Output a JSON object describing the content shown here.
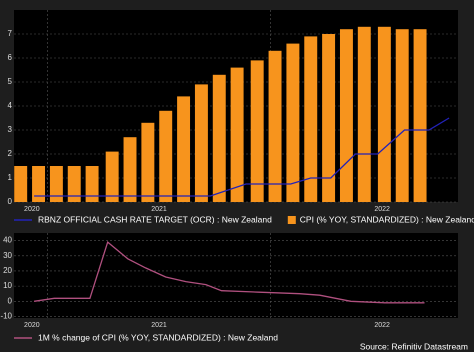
{
  "chart_data": [
    {
      "type": "bar",
      "xlim": [
        2020.85,
        2022.84
      ],
      "xticks": [
        {
          "value": 2020.93,
          "label": "2020"
        },
        {
          "value": 2021.5,
          "label": "2021"
        },
        {
          "value": 2022.5,
          "label": "2022"
        }
      ],
      "xgrid": [
        2021,
        2022
      ],
      "ylim": [
        0,
        8
      ],
      "yticks": [
        0,
        1,
        2,
        3,
        4,
        5,
        6,
        7
      ],
      "grid": true,
      "series": [
        {
          "name": "RBNZ OFFICIAL CASH RATE TARGET (OCR) : New Zealand",
          "type": "line",
          "color": "#2222b8",
          "x": [
            2020.94,
            2021.73,
            2021.89,
            2022.09,
            2022.18,
            2022.27,
            2022.38,
            2022.48,
            2022.54,
            2022.6,
            2022.71,
            2022.8
          ],
          "values": [
            0.25,
            0.25,
            0.75,
            0.75,
            1.0,
            1.0,
            2.0,
            2.0,
            2.5,
            3.0,
            3.0,
            3.5
          ]
        },
        {
          "name": "CPI (% YOY, STANDARDIZED) : New Zealand",
          "type": "bar",
          "color": "#f7941d",
          "x": [
            2020.88,
            2020.96,
            2021.04,
            2021.12,
            2021.2,
            2021.29,
            2021.37,
            2021.45,
            2021.53,
            2021.61,
            2021.69,
            2021.77,
            2021.85,
            2021.94,
            2022.02,
            2022.1,
            2022.18,
            2022.26,
            2022.34,
            2022.42,
            2022.51,
            2022.59,
            2022.67
          ],
          "values": [
            1.5,
            1.5,
            1.5,
            1.5,
            1.5,
            2.1,
            2.7,
            3.3,
            3.8,
            4.4,
            4.9,
            5.3,
            5.6,
            5.9,
            6.3,
            6.6,
            6.9,
            7.0,
            7.2,
            7.3,
            7.3,
            7.2,
            7.2
          ]
        }
      ]
    },
    {
      "type": "line",
      "xlim": [
        2020.85,
        2022.84
      ],
      "xticks": [
        {
          "value": 2020.93,
          "label": "2020"
        },
        {
          "value": 2021.5,
          "label": "2021"
        },
        {
          "value": 2022.5,
          "label": "2022"
        }
      ],
      "xgrid": [
        2021,
        2022
      ],
      "ylim": [
        -11,
        45
      ],
      "yticks": [
        -10,
        0,
        10,
        20,
        30,
        40
      ],
      "grid": true,
      "source": "Source: Refinitiv Datastream",
      "series": [
        {
          "name": "1M % change of CPI (% YOY, STANDARDIZED) : New Zealand",
          "type": "line",
          "color": "#b0507f",
          "x": [
            2020.94,
            2021.03,
            2021.19,
            2021.27,
            2021.36,
            2021.44,
            2021.53,
            2021.62,
            2021.71,
            2021.78,
            2021.95,
            2022.13,
            2022.22,
            2022.36,
            2022.51,
            2022.69
          ],
          "values": [
            0,
            2,
            2,
            39,
            28,
            22,
            16,
            13,
            11,
            7,
            6,
            5,
            4,
            0,
            -1,
            -1
          ]
        }
      ]
    }
  ]
}
